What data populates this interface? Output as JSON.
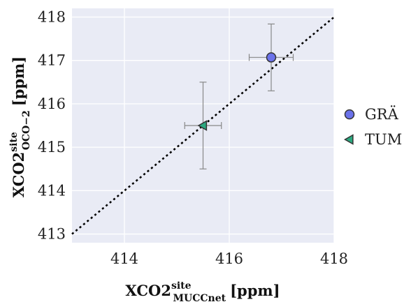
{
  "chart_data": {
    "type": "scatter",
    "xlim": [
      413,
      418
    ],
    "ylim": [
      412.8,
      418.2
    ],
    "xticks": [
      414,
      416,
      418
    ],
    "yticks": [
      413,
      414,
      415,
      416,
      417,
      418
    ],
    "grid": true,
    "legend_position": "right",
    "xlabel": {
      "main": "XCO2",
      "sup": "site",
      "sub": "MUCCnet",
      "unit": "[ppm]"
    },
    "ylabel": {
      "main": "XCO2",
      "sup": "site",
      "sub": "OCO−2",
      "unit": "[ppm]"
    },
    "reference_line": {
      "style": "dotted",
      "x": [
        413,
        418
      ],
      "y": [
        413,
        418
      ],
      "color": "#000000"
    },
    "series": [
      {
        "name": "GRÄ",
        "marker": "circle",
        "color": "#6b72ea",
        "points": [
          {
            "x": 416.8,
            "y": 417.07,
            "xerr": 0.42,
            "yerr": 0.77
          }
        ]
      },
      {
        "name": "TUM",
        "marker": "triangle-left",
        "color": "#2aa87f",
        "points": [
          {
            "x": 415.5,
            "y": 415.5,
            "xerr": 0.35,
            "yerr": 1.0
          }
        ]
      }
    ],
    "colors": {
      "plot_background": "#e9ebf5",
      "grid": "#ffffff",
      "errorbar": "#888888"
    }
  }
}
